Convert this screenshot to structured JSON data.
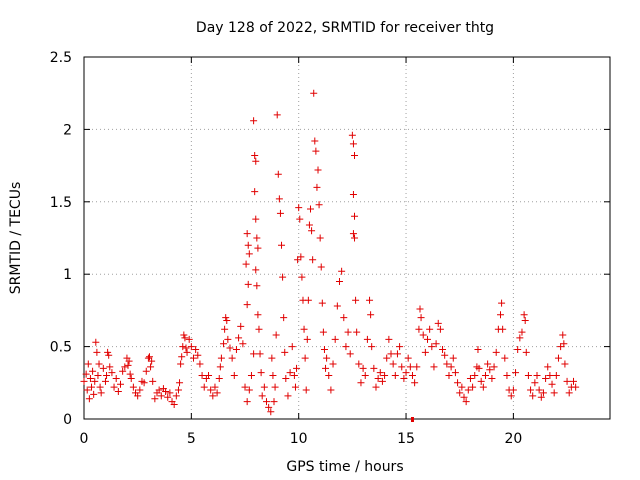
{
  "chart_data": {
    "type": "scatter",
    "title": "Day 128 of 2022, SRMTID for receiver thtg",
    "xlabel": "GPS time / hours",
    "ylabel": "SRMTID / TECUs",
    "xlim": [
      0,
      24.5
    ],
    "ylim": [
      0,
      2.5
    ],
    "xticks": [
      0,
      5,
      10,
      15,
      20
    ],
    "xtick_labels": [
      "0",
      "5",
      "10",
      "15",
      "20"
    ],
    "yticks": [
      0,
      0.5,
      1,
      1.5,
      2,
      2.5
    ],
    "ytick_labels": [
      "0",
      "0.5",
      "1",
      "1.5",
      "2",
      "2.5"
    ],
    "grid": true,
    "marker": "+",
    "color": "#e00000",
    "outlier_marker_color": "#e00000",
    "series": [
      {
        "name": "SRMTID",
        "points": [
          [
            0.0,
            0.26
          ],
          [
            0.1,
            0.31
          ],
          [
            0.15,
            0.2
          ],
          [
            0.2,
            0.38
          ],
          [
            0.25,
            0.14
          ],
          [
            0.3,
            0.28
          ],
          [
            0.35,
            0.22
          ],
          [
            0.4,
            0.33
          ],
          [
            0.45,
            0.17
          ],
          [
            0.5,
            0.26
          ],
          [
            0.55,
            0.53
          ],
          [
            0.6,
            0.46
          ],
          [
            0.65,
            0.3
          ],
          [
            0.7,
            0.38
          ],
          [
            0.75,
            0.22
          ],
          [
            0.8,
            0.18
          ],
          [
            0.9,
            0.35
          ],
          [
            1.0,
            0.26
          ],
          [
            1.05,
            0.3
          ],
          [
            1.1,
            0.46
          ],
          [
            1.15,
            0.44
          ],
          [
            1.2,
            0.36
          ],
          [
            1.3,
            0.32
          ],
          [
            1.4,
            0.22
          ],
          [
            1.5,
            0.28
          ],
          [
            1.6,
            0.19
          ],
          [
            1.7,
            0.24
          ],
          [
            1.8,
            0.33
          ],
          [
            1.9,
            0.36
          ],
          [
            2.0,
            0.42
          ],
          [
            2.05,
            0.37
          ],
          [
            2.1,
            0.4
          ],
          [
            2.15,
            0.31
          ],
          [
            2.2,
            0.28
          ],
          [
            2.3,
            0.22
          ],
          [
            2.4,
            0.18
          ],
          [
            2.5,
            0.16
          ],
          [
            2.6,
            0.2
          ],
          [
            2.7,
            0.26
          ],
          [
            2.8,
            0.25
          ],
          [
            2.9,
            0.33
          ],
          [
            3.0,
            0.42
          ],
          [
            3.05,
            0.43
          ],
          [
            3.1,
            0.36
          ],
          [
            3.15,
            0.4
          ],
          [
            3.2,
            0.26
          ],
          [
            3.3,
            0.14
          ],
          [
            3.4,
            0.18
          ],
          [
            3.5,
            0.2
          ],
          [
            3.6,
            0.16
          ],
          [
            3.7,
            0.21
          ],
          [
            3.8,
            0.19
          ],
          [
            3.9,
            0.15
          ],
          [
            4.0,
            0.18
          ],
          [
            4.1,
            0.12
          ],
          [
            4.2,
            0.1
          ],
          [
            4.3,
            0.16
          ],
          [
            4.4,
            0.2
          ],
          [
            4.45,
            0.25
          ],
          [
            4.5,
            0.38
          ],
          [
            4.55,
            0.43
          ],
          [
            4.6,
            0.5
          ],
          [
            4.65,
            0.58
          ],
          [
            4.7,
            0.56
          ],
          [
            4.75,
            0.49
          ],
          [
            4.8,
            0.46
          ],
          [
            4.9,
            0.55
          ],
          [
            5.0,
            0.5
          ],
          [
            5.1,
            0.42
          ],
          [
            5.2,
            0.48
          ],
          [
            5.3,
            0.44
          ],
          [
            5.4,
            0.38
          ],
          [
            5.5,
            0.3
          ],
          [
            5.6,
            0.22
          ],
          [
            5.7,
            0.28
          ],
          [
            5.8,
            0.3
          ],
          [
            5.9,
            0.2
          ],
          [
            6.0,
            0.16
          ],
          [
            6.1,
            0.22
          ],
          [
            6.2,
            0.18
          ],
          [
            6.3,
            0.28
          ],
          [
            6.35,
            0.36
          ],
          [
            6.4,
            0.42
          ],
          [
            6.5,
            0.52
          ],
          [
            6.55,
            0.62
          ],
          [
            6.6,
            0.7
          ],
          [
            6.65,
            0.68
          ],
          [
            6.7,
            0.55
          ],
          [
            6.8,
            0.49
          ],
          [
            6.9,
            0.42
          ],
          [
            7.0,
            0.3
          ],
          [
            7.1,
            0.48
          ],
          [
            7.2,
            0.56
          ],
          [
            7.3,
            0.64
          ],
          [
            7.4,
            0.52
          ],
          [
            7.5,
            0.22
          ],
          [
            7.6,
            0.12
          ],
          [
            7.7,
            0.2
          ],
          [
            7.8,
            0.3
          ],
          [
            7.9,
            0.45
          ],
          [
            7.6,
            1.28
          ],
          [
            7.65,
            1.2
          ],
          [
            7.7,
            1.14
          ],
          [
            7.55,
            1.07
          ],
          [
            7.6,
            0.79
          ],
          [
            7.65,
            0.93
          ],
          [
            7.9,
            2.06
          ],
          [
            7.95,
            1.82
          ],
          [
            8.0,
            1.78
          ],
          [
            7.95,
            1.57
          ],
          [
            8.0,
            1.38
          ],
          [
            8.05,
            1.25
          ],
          [
            8.1,
            1.18
          ],
          [
            8.0,
            1.03
          ],
          [
            8.05,
            0.92
          ],
          [
            8.1,
            0.72
          ],
          [
            8.15,
            0.62
          ],
          [
            8.2,
            0.45
          ],
          [
            8.25,
            0.32
          ],
          [
            8.3,
            0.16
          ],
          [
            8.4,
            0.22
          ],
          [
            8.5,
            0.12
          ],
          [
            8.6,
            0.08
          ],
          [
            8.7,
            0.05
          ],
          [
            8.75,
            0.42
          ],
          [
            8.8,
            0.3
          ],
          [
            8.85,
            0.12
          ],
          [
            8.9,
            0.22
          ],
          [
            8.95,
            0.58
          ],
          [
            9.0,
            2.1
          ],
          [
            9.05,
            1.69
          ],
          [
            9.1,
            1.52
          ],
          [
            9.15,
            1.42
          ],
          [
            9.2,
            1.2
          ],
          [
            9.25,
            0.98
          ],
          [
            9.3,
            0.7
          ],
          [
            9.35,
            0.46
          ],
          [
            9.4,
            0.28
          ],
          [
            9.5,
            0.16
          ],
          [
            9.6,
            0.32
          ],
          [
            9.7,
            0.5
          ],
          [
            9.8,
            0.3
          ],
          [
            9.85,
            0.22
          ],
          [
            9.9,
            0.35
          ],
          [
            9.95,
            1.1
          ],
          [
            10.0,
            1.46
          ],
          [
            10.05,
            1.38
          ],
          [
            10.1,
            1.12
          ],
          [
            10.15,
            0.98
          ],
          [
            10.2,
            0.82
          ],
          [
            10.25,
            0.62
          ],
          [
            10.3,
            0.42
          ],
          [
            10.35,
            0.2
          ],
          [
            10.4,
            0.55
          ],
          [
            10.45,
            0.82
          ],
          [
            10.5,
            1.34
          ],
          [
            10.55,
            1.45
          ],
          [
            10.6,
            1.3
          ],
          [
            10.65,
            1.1
          ],
          [
            10.7,
            2.25
          ],
          [
            10.75,
            1.92
          ],
          [
            10.8,
            1.85
          ],
          [
            10.85,
            1.6
          ],
          [
            10.9,
            1.72
          ],
          [
            10.95,
            1.48
          ],
          [
            11.0,
            1.25
          ],
          [
            11.05,
            1.05
          ],
          [
            11.1,
            0.8
          ],
          [
            11.15,
            0.6
          ],
          [
            11.2,
            0.48
          ],
          [
            11.25,
            0.35
          ],
          [
            11.3,
            0.42
          ],
          [
            11.4,
            0.3
          ],
          [
            11.5,
            0.2
          ],
          [
            11.6,
            0.38
          ],
          [
            11.7,
            0.55
          ],
          [
            11.8,
            0.78
          ],
          [
            11.9,
            0.95
          ],
          [
            12.0,
            1.02
          ],
          [
            12.1,
            0.7
          ],
          [
            12.2,
            0.5
          ],
          [
            12.3,
            0.6
          ],
          [
            12.4,
            0.45
          ],
          [
            12.5,
            1.96
          ],
          [
            12.55,
            1.9
          ],
          [
            12.6,
            1.82
          ],
          [
            12.55,
            1.55
          ],
          [
            12.6,
            1.4
          ],
          [
            12.55,
            1.28
          ],
          [
            12.6,
            1.25
          ],
          [
            12.65,
            0.82
          ],
          [
            12.7,
            0.6
          ],
          [
            12.8,
            0.38
          ],
          [
            12.9,
            0.25
          ],
          [
            13.0,
            0.35
          ],
          [
            13.1,
            0.3
          ],
          [
            13.2,
            0.55
          ],
          [
            13.3,
            0.82
          ],
          [
            13.35,
            0.72
          ],
          [
            13.4,
            0.5
          ],
          [
            13.5,
            0.35
          ],
          [
            13.6,
            0.22
          ],
          [
            13.7,
            0.28
          ],
          [
            13.8,
            0.32
          ],
          [
            13.9,
            0.26
          ],
          [
            14.0,
            0.3
          ],
          [
            14.1,
            0.42
          ],
          [
            14.2,
            0.55
          ],
          [
            14.3,
            0.45
          ],
          [
            14.4,
            0.38
          ],
          [
            14.5,
            0.3
          ],
          [
            14.6,
            0.45
          ],
          [
            14.7,
            0.5
          ],
          [
            14.8,
            0.36
          ],
          [
            14.9,
            0.28
          ],
          [
            15.0,
            0.32
          ],
          [
            15.1,
            0.42
          ],
          [
            15.2,
            0.36
          ],
          [
            15.3,
            0.3
          ],
          [
            15.4,
            0.25
          ],
          [
            15.5,
            0.36
          ],
          [
            15.6,
            0.62
          ],
          [
            15.65,
            0.76
          ],
          [
            15.7,
            0.7
          ],
          [
            15.8,
            0.58
          ],
          [
            15.9,
            0.46
          ],
          [
            16.0,
            0.55
          ],
          [
            16.1,
            0.62
          ],
          [
            16.2,
            0.5
          ],
          [
            16.3,
            0.36
          ],
          [
            16.4,
            0.52
          ],
          [
            16.5,
            0.66
          ],
          [
            16.6,
            0.62
          ],
          [
            16.7,
            0.48
          ],
          [
            16.8,
            0.44
          ],
          [
            16.9,
            0.38
          ],
          [
            17.0,
            0.3
          ],
          [
            17.1,
            0.36
          ],
          [
            17.2,
            0.42
          ],
          [
            17.3,
            0.32
          ],
          [
            17.4,
            0.25
          ],
          [
            17.5,
            0.18
          ],
          [
            17.6,
            0.22
          ],
          [
            17.7,
            0.15
          ],
          [
            17.8,
            0.12
          ],
          [
            17.9,
            0.2
          ],
          [
            18.0,
            0.28
          ],
          [
            18.1,
            0.22
          ],
          [
            18.2,
            0.3
          ],
          [
            18.3,
            0.36
          ],
          [
            18.35,
            0.48
          ],
          [
            18.4,
            0.35
          ],
          [
            18.5,
            0.26
          ],
          [
            18.6,
            0.22
          ],
          [
            18.7,
            0.3
          ],
          [
            18.8,
            0.38
          ],
          [
            18.9,
            0.34
          ],
          [
            19.0,
            0.28
          ],
          [
            19.1,
            0.36
          ],
          [
            19.2,
            0.46
          ],
          [
            19.3,
            0.62
          ],
          [
            19.4,
            0.72
          ],
          [
            19.45,
            0.8
          ],
          [
            19.5,
            0.62
          ],
          [
            19.6,
            0.42
          ],
          [
            19.7,
            0.3
          ],
          [
            19.8,
            0.2
          ],
          [
            19.9,
            0.16
          ],
          [
            20.0,
            0.2
          ],
          [
            20.1,
            0.32
          ],
          [
            20.2,
            0.48
          ],
          [
            20.3,
            0.56
          ],
          [
            20.4,
            0.6
          ],
          [
            20.5,
            0.72
          ],
          [
            20.55,
            0.68
          ],
          [
            20.6,
            0.46
          ],
          [
            20.7,
            0.3
          ],
          [
            20.8,
            0.2
          ],
          [
            20.9,
            0.16
          ],
          [
            21.0,
            0.25
          ],
          [
            21.1,
            0.3
          ],
          [
            21.2,
            0.2
          ],
          [
            21.3,
            0.15
          ],
          [
            21.4,
            0.18
          ],
          [
            21.5,
            0.28
          ],
          [
            21.6,
            0.36
          ],
          [
            21.7,
            0.3
          ],
          [
            21.8,
            0.24
          ],
          [
            21.9,
            0.18
          ],
          [
            22.0,
            0.3
          ],
          [
            22.1,
            0.42
          ],
          [
            22.2,
            0.5
          ],
          [
            22.3,
            0.58
          ],
          [
            22.35,
            0.52
          ],
          [
            22.4,
            0.38
          ],
          [
            22.5,
            0.26
          ],
          [
            22.6,
            0.18
          ],
          [
            22.7,
            0.22
          ],
          [
            22.8,
            0.26
          ],
          [
            22.9,
            0.22
          ]
        ]
      }
    ],
    "outlier_markers": [
      {
        "x": 15.3,
        "y": 0.0
      }
    ]
  }
}
